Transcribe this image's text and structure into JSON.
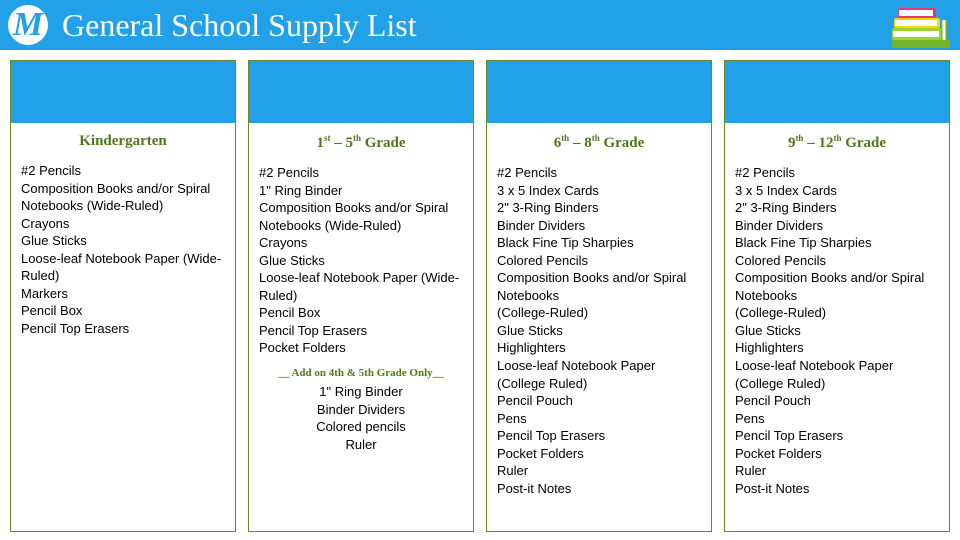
{
  "header": {
    "title": "General School Supply List",
    "logo_glyph": "M",
    "background_color": "#22a0e8",
    "title_color": "#ffffff",
    "title_fontsize": 32
  },
  "books_icon": {
    "shelf_color": "#74b52a",
    "book1_color": "#e33a6e",
    "book2_color": "#9cd233",
    "book3_color": "#ffd400",
    "page_color": "#ffffff"
  },
  "layout": {
    "border_color": "#6a8a2a",
    "column_band_color": "#22a0e8",
    "grade_title_color": "#4a7a1a",
    "body_fontsize": 13
  },
  "columns": [
    {
      "grade": "Kindergarten",
      "grade_html": "Kindergarten",
      "items": [
        "#2 Pencils",
        "Composition Books and/or Spiral Notebooks (Wide-Ruled)",
        "Crayons",
        "Glue Sticks",
        "Loose-leaf Notebook Paper (Wide-Ruled)",
        "Markers",
        "Pencil Box",
        "Pencil Top Erasers"
      ]
    },
    {
      "grade": "1st – 5th Grade",
      "grade_html": "1<sup>st</sup> – 5<sup>th</sup> Grade",
      "items": [
        "#2 Pencils",
        "1\" Ring Binder",
        "Composition Books and/or Spiral Notebooks (Wide-Ruled)",
        "Crayons",
        "Glue Sticks",
        "Loose-leaf Notebook Paper (Wide-Ruled)",
        "Pencil Box",
        "Pencil Top Erasers",
        "Pocket Folders"
      ],
      "addon_title": "__ Add on 4th & 5th Grade Only__",
      "addon_items": [
        "1\" Ring Binder",
        "Binder Dividers",
        "Colored pencils",
        "Ruler"
      ]
    },
    {
      "grade": "6th – 8th Grade",
      "grade_html": "6<sup>th</sup> – 8<sup>th</sup> Grade",
      "items": [
        "#2 Pencils",
        "3 x 5 Index Cards",
        "2\" 3-Ring Binders",
        "Binder Dividers",
        "Black Fine Tip Sharpies",
        "Colored Pencils",
        "Composition Books and/or Spiral Notebooks",
        "(College-Ruled)",
        "Glue Sticks",
        "Highlighters",
        "Loose-leaf Notebook Paper (College Ruled)",
        "Pencil Pouch",
        "Pens",
        "Pencil Top Erasers",
        "Pocket Folders",
        "Ruler",
        "Post-it Notes"
      ]
    },
    {
      "grade": "9th – 12th Grade",
      "grade_html": "9<sup>th</sup> – 12<sup>th</sup> Grade",
      "items": [
        "#2 Pencils",
        "3 x 5 Index Cards",
        "2\" 3-Ring Binders",
        "Binder Dividers",
        "Black Fine Tip Sharpies",
        "Colored Pencils",
        "Composition Books and/or Spiral Notebooks",
        "(College-Ruled)",
        "Glue Sticks",
        "Highlighters",
        "Loose-leaf Notebook Paper (College Ruled)",
        "Pencil Pouch",
        "Pens",
        "Pencil Top Erasers",
        "Pocket Folders",
        "Ruler",
        "Post-it Notes"
      ]
    }
  ]
}
